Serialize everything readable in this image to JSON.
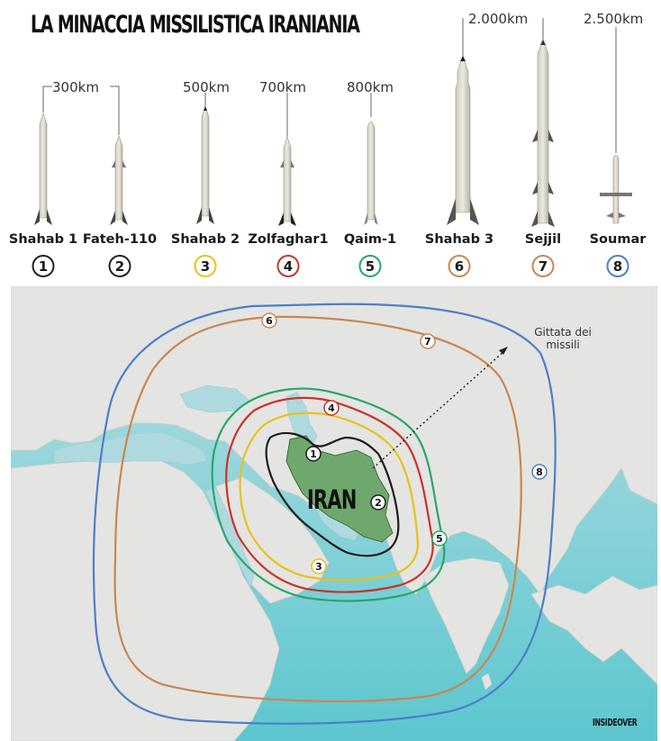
{
  "title": "LA MINACCIA MISSILISTICA IRANIANIA",
  "missiles": [
    {
      "number": "1",
      "name": "Shahab 1",
      "color": "#222222"
    },
    {
      "number": "2",
      "name": "Fateh-110",
      "color": "#222222"
    },
    {
      "number": "3",
      "name": "Shahab 2",
      "color": "#e8c21c"
    },
    {
      "number": "4",
      "name": "Zolfaghar1",
      "color": "#c8352b"
    },
    {
      "number": "5",
      "name": "Qaim-1",
      "color": "#27a869"
    },
    {
      "number": "6",
      "name": "Shahab 3",
      "color": "#c98752"
    },
    {
      "number": "7",
      "name": "Sejjil",
      "color": "#c98752"
    },
    {
      "number": "8",
      "name": "Soumar",
      "color": "#4d7fc9"
    }
  ],
  "ranges": {
    "r300": "300km",
    "r500": "500km",
    "r700": "700km",
    "r800": "800km",
    "r2000": "2.000km",
    "r2500": "2.500km"
  },
  "map": {
    "country_label": "IRAN",
    "annotation": "Gittata dei missili",
    "ring_labels": [
      "1",
      "2",
      "3",
      "4",
      "5",
      "6",
      "7",
      "8"
    ]
  },
  "logo": "INSIDEOVER"
}
